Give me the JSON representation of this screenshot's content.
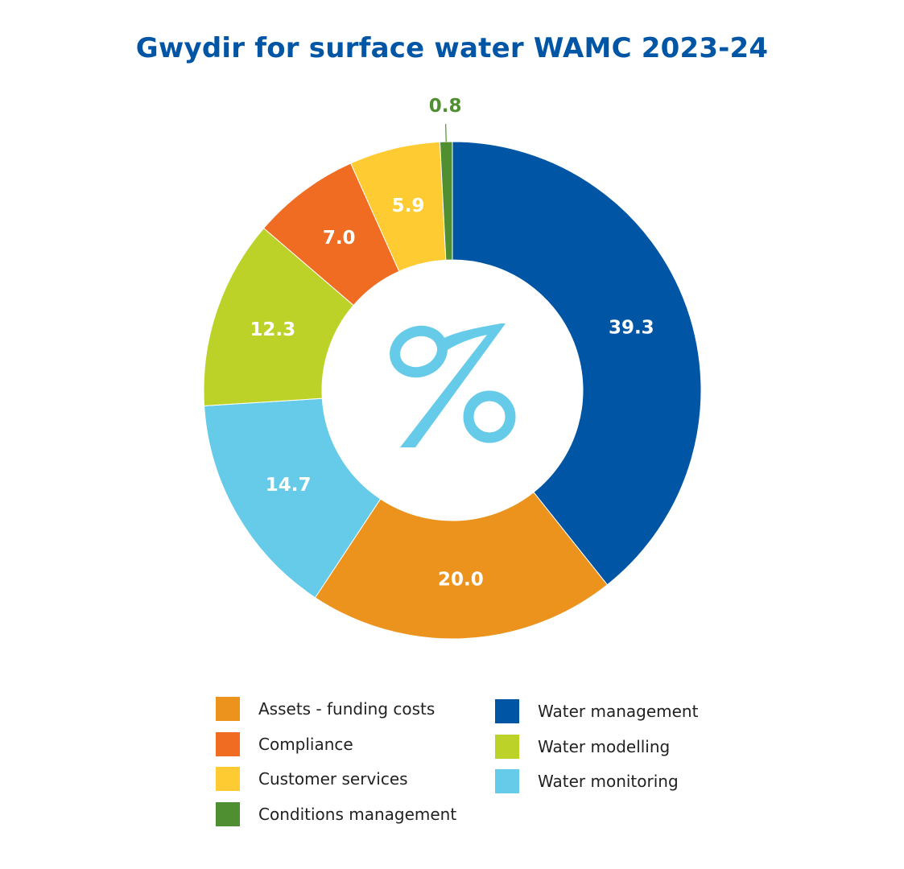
{
  "chart_data": {
    "type": "pie",
    "style": "donut",
    "title": "Gwydir for surface water WAMC 2023-24",
    "center_symbol": "%",
    "slices": [
      {
        "label": "Water management",
        "value": 39.3,
        "display": "39.3",
        "color": "#0055a5"
      },
      {
        "label": "Assets - funding costs",
        "value": 20.0,
        "display": "20.0",
        "color": "#ec931e"
      },
      {
        "label": "Water monitoring",
        "value": 14.7,
        "display": "14.7",
        "color": "#65cbe9"
      },
      {
        "label": "Water modelling",
        "value": 12.3,
        "display": "12.3",
        "color": "#bdd229"
      },
      {
        "label": "Compliance",
        "value": 7.0,
        "display": "7.0",
        "color": "#ef6c22"
      },
      {
        "label": "Customer services",
        "value": 5.9,
        "display": "5.9",
        "color": "#fecc32"
      },
      {
        "label": "Conditions management",
        "value": 0.8,
        "display": "0.8",
        "color": "#4f8f32"
      }
    ],
    "legend": {
      "placement": "bottom",
      "columns": [
        [
          "Assets - funding costs",
          "Compliance",
          "Customer services",
          "Conditions management"
        ],
        [
          "Water management",
          "Water modelling",
          "Water monitoring"
        ]
      ]
    }
  }
}
